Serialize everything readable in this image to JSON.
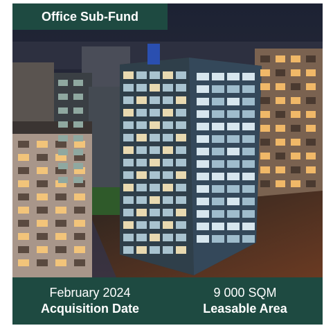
{
  "tag": "Office Sub-Fund",
  "stats": [
    {
      "value": "February 2024",
      "label": "Acquisition Date"
    },
    {
      "value": "9 000 SQM",
      "label": "Leasable Area"
    }
  ]
}
